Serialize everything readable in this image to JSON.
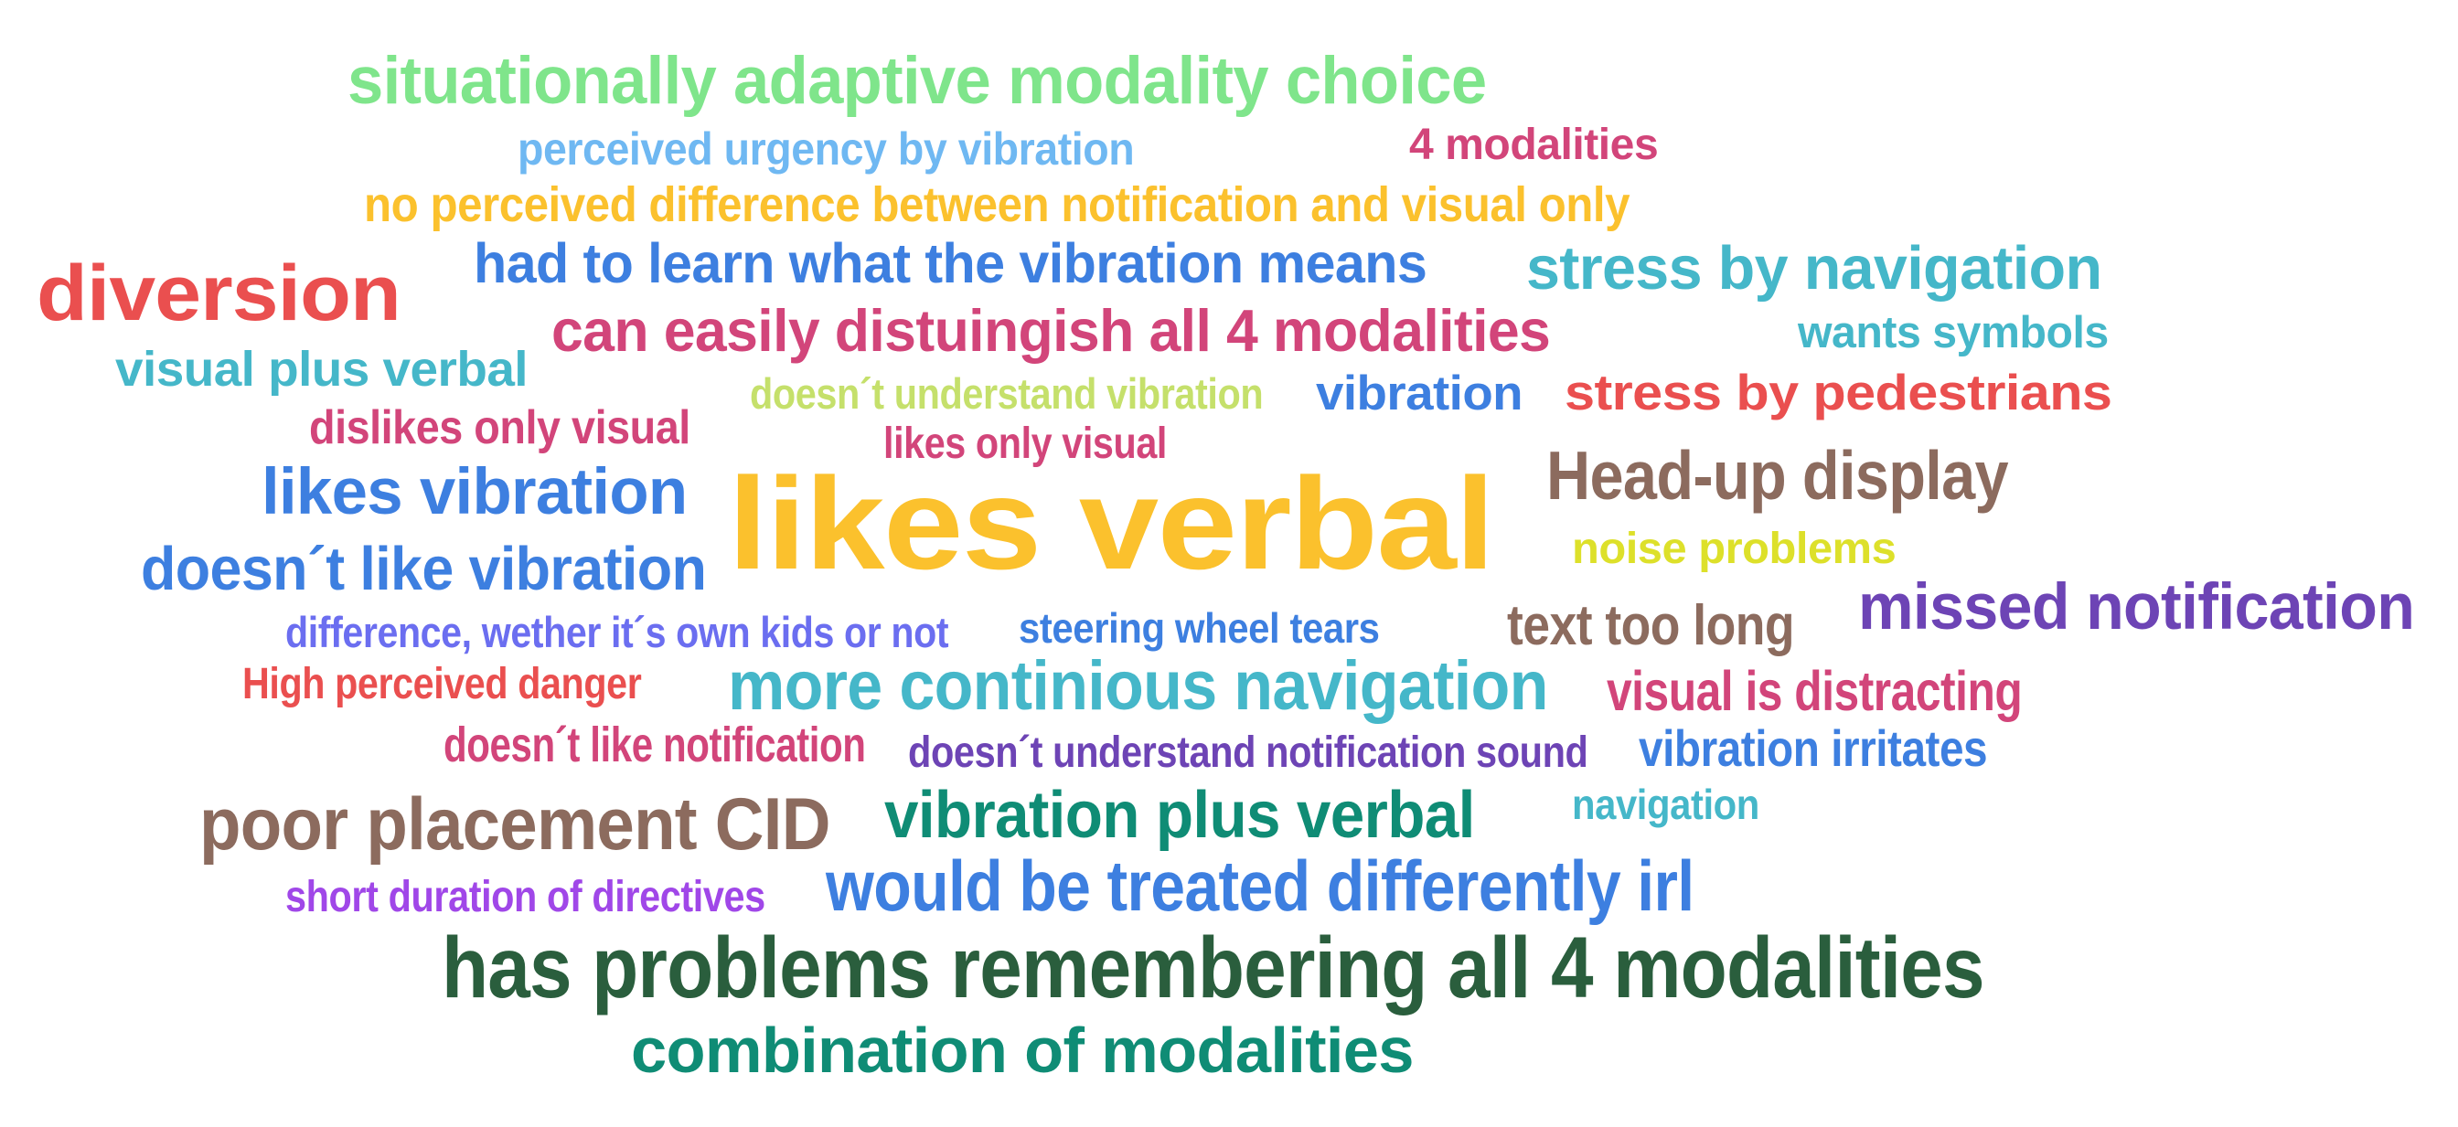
{
  "words": [
    {
      "text": "situationally adaptive modality choice",
      "color": "#7fe58b"
    },
    {
      "text": "perceived urgency by vibration",
      "color": "#6fb8f2"
    },
    {
      "text": "4 modalities",
      "color": "#d2457a"
    },
    {
      "text": "no perceived difference between notification and visual only",
      "color": "#fbc12d"
    },
    {
      "text": "had to learn what the vibration means",
      "color": "#3d7fe0"
    },
    {
      "text": "stress by navigation",
      "color": "#45b7c9"
    },
    {
      "text": "diversion",
      "color": "#ea4f4f"
    },
    {
      "text": "can easily distuingish all 4 modalities",
      "color": "#d2457a"
    },
    {
      "text": "wants symbols",
      "color": "#45b7c9"
    },
    {
      "text": "visual plus verbal",
      "color": "#45b7c9"
    },
    {
      "text": "doesn´t understand vibration",
      "color": "#c5e06b"
    },
    {
      "text": "vibration",
      "color": "#3d7fe0"
    },
    {
      "text": "stress by pedestrians",
      "color": "#ea4f4f"
    },
    {
      "text": "dislikes only visual",
      "color": "#d2457a"
    },
    {
      "text": "likes only visual",
      "color": "#d2457a"
    },
    {
      "text": "likes vibration",
      "color": "#3d7fe0"
    },
    {
      "text": "likes verbal",
      "color": "#fbc12d"
    },
    {
      "text": "Head-up display",
      "color": "#8c6b5e"
    },
    {
      "text": "noise problems",
      "color": "#dde02a"
    },
    {
      "text": "doesn´t like vibration",
      "color": "#3d7fe0"
    },
    {
      "text": "missed notification",
      "color": "#6d44b5"
    },
    {
      "text": "difference, wether it´s own kids or not",
      "color": "#6b6ef0"
    },
    {
      "text": "steering wheel tears",
      "color": "#3d7fe0"
    },
    {
      "text": "text too long",
      "color": "#8c6b5e"
    },
    {
      "text": "High perceived danger",
      "color": "#ea4f4f"
    },
    {
      "text": "more continious navigation",
      "color": "#45b7c9"
    },
    {
      "text": "visual is distracting",
      "color": "#d2457a"
    },
    {
      "text": "doesn´t like notification",
      "color": "#d2457a"
    },
    {
      "text": "doesn´t understand notification sound",
      "color": "#6d44b5"
    },
    {
      "text": "vibration irritates",
      "color": "#3d7fe0"
    },
    {
      "text": "poor placement CID",
      "color": "#8c6b5e"
    },
    {
      "text": "vibration plus verbal",
      "color": "#0f8c75"
    },
    {
      "text": "navigation",
      "color": "#45b7c9"
    },
    {
      "text": "short duration of directives",
      "color": "#a047e8"
    },
    {
      "text": "would be treated differently irl",
      "color": "#3d7fe0"
    },
    {
      "text": "has problems remembering all 4 modalities",
      "color": "#2a5e3d"
    },
    {
      "text": "combination of modalities",
      "color": "#0f8c75"
    }
  ]
}
